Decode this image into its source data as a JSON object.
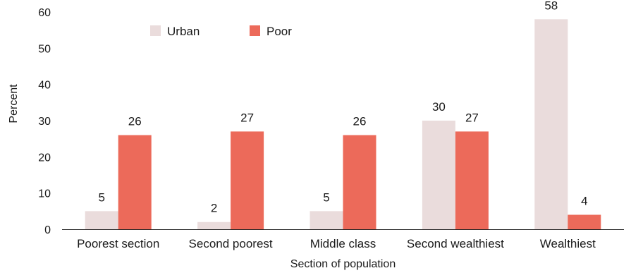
{
  "chart_data": {
    "type": "bar",
    "title": "",
    "xlabel": "Section of population",
    "ylabel": "Percent",
    "ylim": [
      0,
      60
    ],
    "yticks": [
      0,
      10,
      20,
      30,
      40,
      50,
      60
    ],
    "grid": false,
    "legend_position": "top-left",
    "categories": [
      "Poorest section",
      "Second poorest",
      "Middle class",
      "Second wealthiest",
      "Wealthiest"
    ],
    "series": [
      {
        "name": "Urban",
        "color": "#eadcdc",
        "values": [
          5,
          2,
          5,
          30,
          58
        ]
      },
      {
        "name": "Poor",
        "color": "#ec6a5a",
        "values": [
          26,
          27,
          26,
          27,
          4
        ]
      }
    ]
  }
}
